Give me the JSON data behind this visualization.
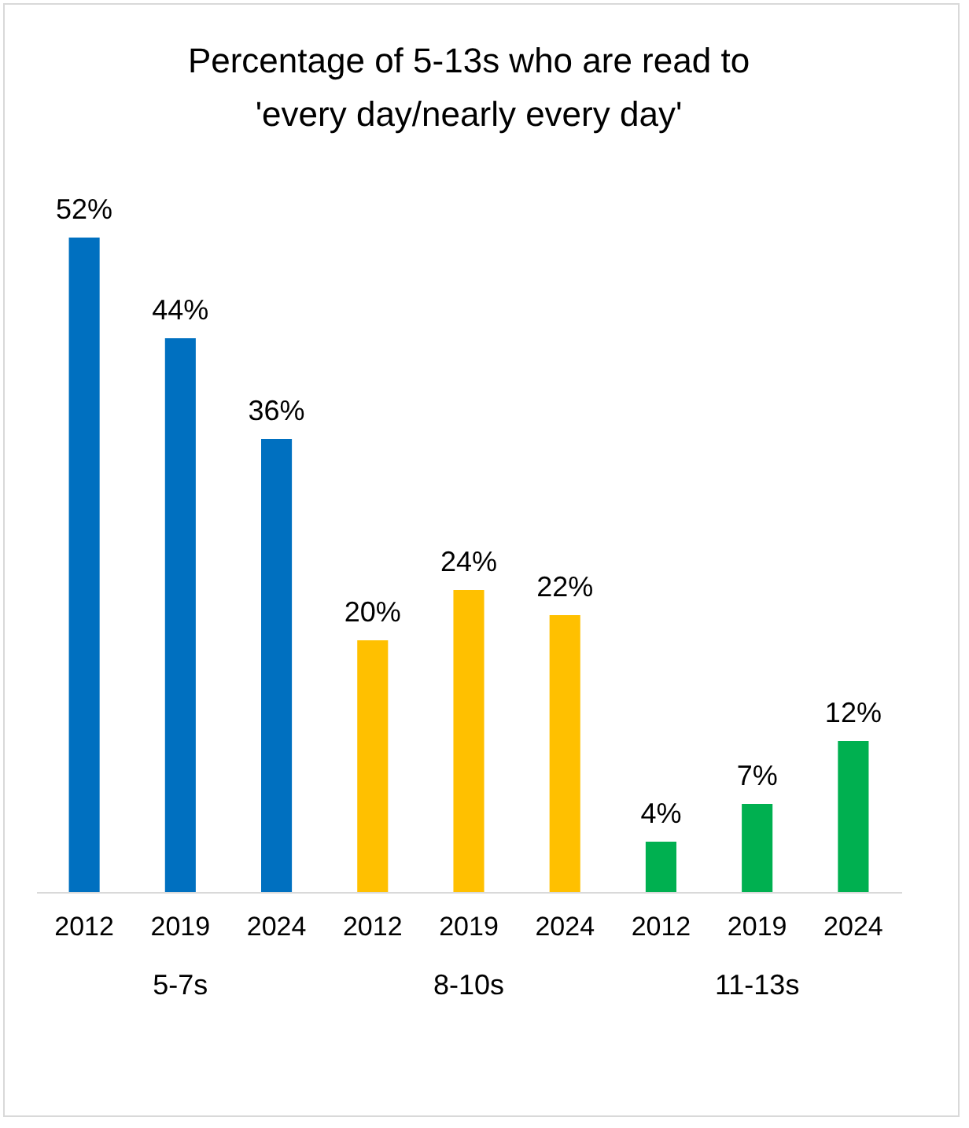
{
  "chart_data": {
    "type": "bar",
    "title": "Percentage of 5-13s who are read to\n'every day/nearly every day'",
    "categories": [
      "2012",
      "2019",
      "2024",
      "2012",
      "2019",
      "2024",
      "2012",
      "2019",
      "2024"
    ],
    "series": [
      {
        "name": "5-7s",
        "color": "#0070c0",
        "values": [
          52,
          44,
          36,
          null,
          null,
          null,
          null,
          null,
          null
        ],
        "value_labels": [
          "52%",
          "44%",
          "36%",
          null,
          null,
          null,
          null,
          null,
          null
        ]
      },
      {
        "name": "8-10s",
        "color": "#ffc000",
        "values": [
          null,
          null,
          null,
          20,
          24,
          22,
          null,
          null,
          null
        ],
        "value_labels": [
          null,
          null,
          null,
          "20%",
          "24%",
          "22%",
          null,
          null,
          null
        ]
      },
      {
        "name": "11-13s",
        "color": "#00b050",
        "values": [
          null,
          null,
          null,
          null,
          null,
          null,
          4,
          7,
          12
        ],
        "value_labels": [
          null,
          null,
          null,
          null,
          null,
          null,
          "4%",
          "7%",
          "12%"
        ]
      }
    ],
    "legend": false
  }
}
